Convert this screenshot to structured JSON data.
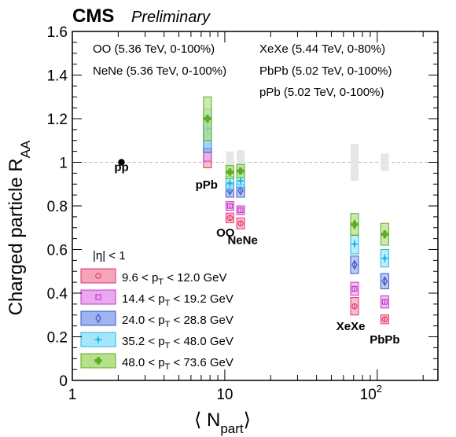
{
  "header": {
    "experiment": "CMS",
    "status": "Preliminary"
  },
  "chart_data": {
    "type": "scatter",
    "xlabel_main": "⟨ N",
    "xlabel_sub": "part",
    "xlabel_close": "⟩",
    "ylabel_main": "Charged particle R",
    "ylabel_sub": "AA",
    "x_scale": "log",
    "xlim": [
      1,
      250
    ],
    "ylim": [
      0,
      1.6
    ],
    "x_ticks": [
      {
        "value": 1,
        "label": "1"
      },
      {
        "value": 10,
        "label": "10"
      }
    ],
    "x_tick_100": {
      "value": 100,
      "base": "10",
      "exp": "2"
    },
    "y_ticks": [
      {
        "value": 0,
        "label": "0"
      },
      {
        "value": 0.2,
        "label": "0.2"
      },
      {
        "value": 0.4,
        "label": "0.4"
      },
      {
        "value": 0.6,
        "label": "0.6"
      },
      {
        "value": 0.8,
        "label": "0.8"
      },
      {
        "value": 1.0,
        "label": "1"
      },
      {
        "value": 1.2,
        "label": "1.2"
      },
      {
        "value": 1.4,
        "label": "1.4"
      },
      {
        "value": 1.6,
        "label": "1.6"
      }
    ],
    "reference_line": 1.0,
    "legend_title": "|η| < 1",
    "system_notes": [
      "OO (5.36 TeV, 0-100%)",
      "NeNe (5.36 TeV, 0-100%)",
      "XeXe (5.44 TeV, 0-80%)",
      "PbPb (5.02 TeV, 0-100%)",
      "pPb (5.02 TeV, 0-100%)"
    ],
    "system_labels": [
      {
        "text": "pp",
        "x": 2.1,
        "y": 0.96
      },
      {
        "text": "pPb",
        "x": 7.6,
        "y": 0.88
      },
      {
        "text": "OO",
        "x": 10.1,
        "y": 0.66
      },
      {
        "text": "NeNe",
        "x": 13.1,
        "y": 0.625
      },
      {
        "text": "XeXe",
        "x": 67,
        "y": 0.23
      },
      {
        "text": "PbPb",
        "x": 112,
        "y": 0.17
      }
    ],
    "pp_point": {
      "x": 2.1,
      "y": 1.0
    },
    "norm_bands": [
      {
        "x": 10.8,
        "low": 0.95,
        "high": 1.05
      },
      {
        "x": 12.7,
        "low": 0.945,
        "high": 1.055
      },
      {
        "x": 71,
        "low": 0.915,
        "high": 1.085
      },
      {
        "x": 112,
        "low": 0.96,
        "high": 1.04
      }
    ],
    "series": [
      {
        "name_main": "9.6 < p",
        "name_sub": "T",
        "name_tail": " < 12.0 GeV",
        "marker": "circle",
        "color": "#e8336b",
        "fill": "#f4a5b8",
        "points": [
          {
            "x": 7.7,
            "y": 1.06,
            "sys": 0.085,
            "stat": 0.012
          },
          {
            "x": 10.8,
            "y": 0.745,
            "sys": 0.022,
            "stat": 0.008
          },
          {
            "x": 12.7,
            "y": 0.72,
            "sys": 0.025,
            "stat": 0.008
          },
          {
            "x": 71,
            "y": 0.34,
            "sys": 0.04,
            "stat": 0.012
          },
          {
            "x": 112,
            "y": 0.28,
            "sys": 0.02,
            "stat": 0.008
          }
        ]
      },
      {
        "name_main": "14.4 < p",
        "name_sub": "T",
        "name_tail": " < 19.2 GeV",
        "marker": "square",
        "color": "#c737c7",
        "fill": "#e9a8f0",
        "points": [
          {
            "x": 7.7,
            "y": 1.09,
            "sys": 0.085,
            "stat": 0.012
          },
          {
            "x": 10.8,
            "y": 0.8,
            "sys": 0.02,
            "stat": 0.008
          },
          {
            "x": 12.7,
            "y": 0.78,
            "sys": 0.02,
            "stat": 0.008
          },
          {
            "x": 71,
            "y": 0.42,
            "sys": 0.03,
            "stat": 0.01
          },
          {
            "x": 112,
            "y": 0.36,
            "sys": 0.028,
            "stat": 0.01
          }
        ]
      },
      {
        "name_main": "24.0 < p",
        "name_sub": "T",
        "name_tail": " < 28.8 GeV",
        "marker": "diamond",
        "color": "#3a56c8",
        "fill": "#9fb3ee",
        "points": [
          {
            "x": 7.7,
            "y": 1.13,
            "sys": 0.085,
            "stat": 0.015
          },
          {
            "x": 10.8,
            "y": 0.87,
            "sys": 0.03,
            "stat": 0.01
          },
          {
            "x": 12.7,
            "y": 0.87,
            "sys": 0.03,
            "stat": 0.01
          },
          {
            "x": 71,
            "y": 0.53,
            "sys": 0.04,
            "stat": 0.015
          },
          {
            "x": 112,
            "y": 0.455,
            "sys": 0.035,
            "stat": 0.015
          }
        ]
      },
      {
        "name_main": "35.2 < p",
        "name_sub": "T",
        "name_tail": " < 48.0 GeV",
        "marker": "star",
        "color": "#18b6e8",
        "fill": "#a6e6fa",
        "points": [
          {
            "x": 7.7,
            "y": 1.155,
            "sys": 0.09,
            "stat": 0.02
          },
          {
            "x": 10.8,
            "y": 0.905,
            "sys": 0.03,
            "stat": 0.012
          },
          {
            "x": 12.7,
            "y": 0.915,
            "sys": 0.03,
            "stat": 0.012
          },
          {
            "x": 71,
            "y": 0.625,
            "sys": 0.045,
            "stat": 0.02
          },
          {
            "x": 112,
            "y": 0.56,
            "sys": 0.04,
            "stat": 0.02
          }
        ]
      },
      {
        "name_main": "48.0 < p",
        "name_sub": "T",
        "name_tail": " < 73.6 GeV",
        "marker": "cross",
        "color": "#5aae22",
        "fill": "#b8e08c",
        "points": [
          {
            "x": 7.7,
            "y": 1.2,
            "sys": 0.1,
            "stat": 0.02
          },
          {
            "x": 10.8,
            "y": 0.955,
            "sys": 0.03,
            "stat": 0.015
          },
          {
            "x": 12.7,
            "y": 0.96,
            "sys": 0.03,
            "stat": 0.015
          },
          {
            "x": 71,
            "y": 0.715,
            "sys": 0.05,
            "stat": 0.025
          },
          {
            "x": 112,
            "y": 0.67,
            "sys": 0.05,
            "stat": 0.02
          }
        ]
      }
    ]
  }
}
